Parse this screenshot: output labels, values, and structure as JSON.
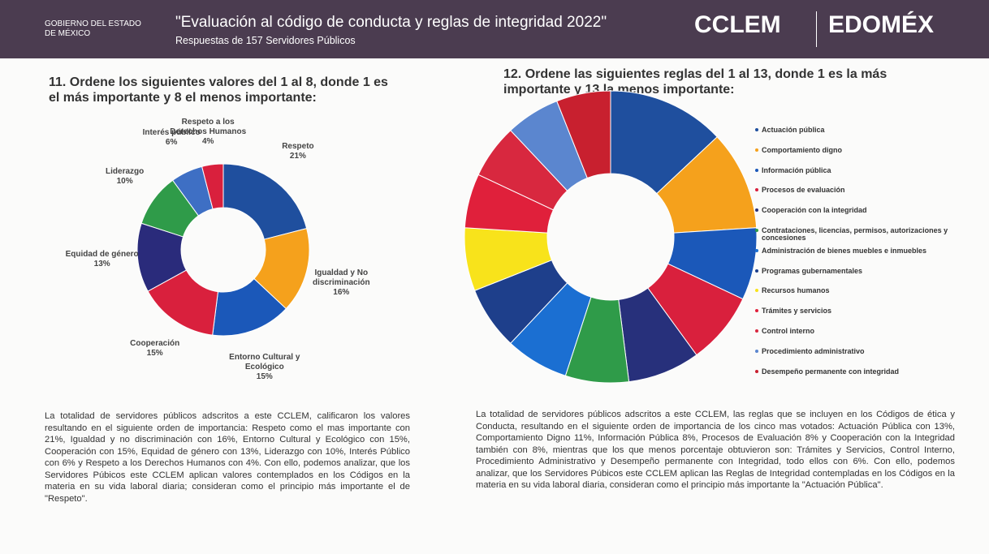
{
  "header": {
    "government": "GOBIERNO DEL ESTADO DE MÉXICO",
    "title": "\"Evaluación al código de conducta y reglas de integridad 2022\"",
    "subtitle": "Respuestas de 157 Servidores Públicos",
    "logo_left": "CCLEM",
    "logo_right": "EDOMÉX"
  },
  "chart_data": [
    {
      "type": "donut",
      "title": "11. Ordene los siguientes valores del 1 al 8, donde 1 es el más importante y 8 el menos importante:",
      "categories": [
        "Respeto",
        "Igualdad y No discriminación",
        "Entorno Cultural y Ecológico",
        "Cooperación",
        "Equidad de género",
        "Liderazgo",
        "Interés público",
        "Respeto a los Derechos Humanos"
      ],
      "values": [
        21,
        16,
        15,
        15,
        13,
        10,
        6,
        4
      ],
      "value_labels": [
        "21%",
        "16%",
        "15%",
        "15%",
        "13%",
        "10%",
        "6%",
        "4%"
      ],
      "colors": [
        "#1f4f9e",
        "#f5a11c",
        "#1b58b9",
        "#d9203d",
        "#2a2b7b",
        "#2f9b49",
        "#3e6fc4",
        "#d9203d"
      ]
    },
    {
      "type": "donut",
      "title": "12. Ordene las siguientes reglas del 1 al 13, donde 1 es la más importante y 13 la menos importante:",
      "categories": [
        "Actuación pública",
        "Comportamiento digno",
        "Información pública",
        "Procesos de evaluación",
        "Cooperación con la integridad",
        "Contrataciones, licencias, permisos, autorizaciones y concesiones",
        "Administración de bienes muebles e inmuebles",
        "Programas gubernamentales",
        "Recursos humanos",
        "Trámites y servicios",
        "Control interno",
        "Procedimiento administrativo",
        "Desempeño permanente con integridad"
      ],
      "values": [
        13,
        11,
        8,
        8,
        8,
        7,
        7,
        7,
        7,
        6,
        6,
        6,
        6
      ],
      "colors": [
        "#1f4f9e",
        "#f5a11c",
        "#1b58b9",
        "#d9203d",
        "#27307b",
        "#2f9b49",
        "#1b6fd2",
        "#1e3f8b",
        "#f8e31b",
        "#e0203b",
        "#d8283f",
        "#5b86cf",
        "#c8202f"
      ],
      "legend": "right"
    }
  ],
  "paragraphs": [
    "La totalidad de servidores públicos adscritos a este CCLEM, calificaron los valores resultando en el siguiente orden de importancia: Respeto como el mas importante con 21%, Igualdad y no discriminación con 16%, Entorno Cultural y Ecológico con 15%, Cooperación con 15%, Equidad de género con 13%, Liderazgo con 10%, Interés Público con 6% y Respeto a los Derechos Humanos con 4%. Con ello, podemos analizar, que los Servidores Púbicos este CCLEM aplican valores contemplados en los Códigos en la materia en su vida laboral diaria; consideran como el principio más importante el de \"Respeto\".",
    "La totalidad de servidores públicos adscritos a este CCLEM, las reglas que se incluyen en los Códigos de ética y Conducta, resultando en el siguiente orden de importancia de los cinco mas votados: Actuación Pública con 13%, Comportamiento Digno 11%, Información Pública 8%, Procesos de Evaluación 8% y Cooperación con la Integridad también con 8%, mientras que los que menos porcentaje obtuvieron son: Trámites y Servicios, Control Interno, Procedimiento Administrativo y Desempeño permanente con Integridad, todo ellos con 6%. Con ello, podemos analizar, que los Servidores Púbicos este CCLEM aplican las Reglas de Integridad contempladas en los Códigos en la materia en su vida laboral diaria, consideran como el principio más importante la \"Actuación Pública\"."
  ]
}
